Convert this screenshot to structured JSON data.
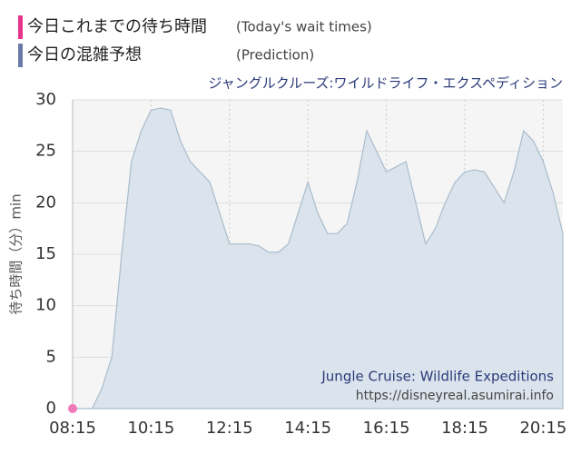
{
  "chart_data": {
    "type": "area",
    "title": "ジャングルクルーズ:ワイルドライフ・エクスペディション",
    "ylabel": "待ち時間（分）min",
    "watermark": [
      "Jungle Cruise: Wildlife Expeditions",
      "https://disneyreal.asumirai.info"
    ],
    "xlim": [
      "08:15",
      "20:45"
    ],
    "xticks": [
      "08:15",
      "10:15",
      "12:15",
      "14:15",
      "16:15",
      "18:15",
      "20:15"
    ],
    "ylim": [
      0,
      30
    ],
    "yticks": [
      0,
      5,
      10,
      15,
      20,
      25,
      30
    ],
    "grid": true,
    "series": [
      {
        "name": "今日これまでの待ち時間",
        "subtitle": "(Today's wait times)",
        "color": "#e8338a",
        "marker_color": "#f07ab8",
        "x": [
          "08:15"
        ],
        "values": [
          0
        ]
      },
      {
        "name": "今日の混雑予想",
        "subtitle": "(Prediction)",
        "color": "#6a7aa8",
        "fill": "#d6e1eb",
        "stroke": "#a9bccb",
        "x": [
          "08:15",
          "08:30",
          "08:45",
          "09:00",
          "09:15",
          "09:30",
          "09:45",
          "10:00",
          "10:15",
          "10:30",
          "10:45",
          "11:00",
          "11:15",
          "11:30",
          "11:45",
          "12:00",
          "12:15",
          "12:30",
          "12:45",
          "13:00",
          "13:15",
          "13:30",
          "13:45",
          "14:00",
          "14:15",
          "14:30",
          "14:45",
          "15:00",
          "15:15",
          "15:30",
          "15:45",
          "16:00",
          "16:15",
          "16:30",
          "16:45",
          "17:00",
          "17:15",
          "17:30",
          "17:45",
          "18:00",
          "18:15",
          "18:30",
          "18:45",
          "19:00",
          "19:15",
          "19:30",
          "19:45",
          "20:00",
          "20:15",
          "20:30",
          "20:45"
        ],
        "values": [
          0,
          0,
          0,
          2,
          5,
          15,
          24,
          27,
          29,
          29.2,
          29,
          26,
          24,
          23,
          22,
          19,
          16,
          16,
          16,
          15.8,
          15.2,
          15.2,
          16,
          19,
          22,
          19,
          17,
          17,
          18,
          22,
          27,
          25,
          23,
          23.5,
          24,
          20,
          16,
          17.5,
          20,
          22,
          23,
          23.2,
          23,
          21.5,
          20,
          23,
          27,
          26,
          24,
          21,
          17
        ]
      }
    ]
  }
}
